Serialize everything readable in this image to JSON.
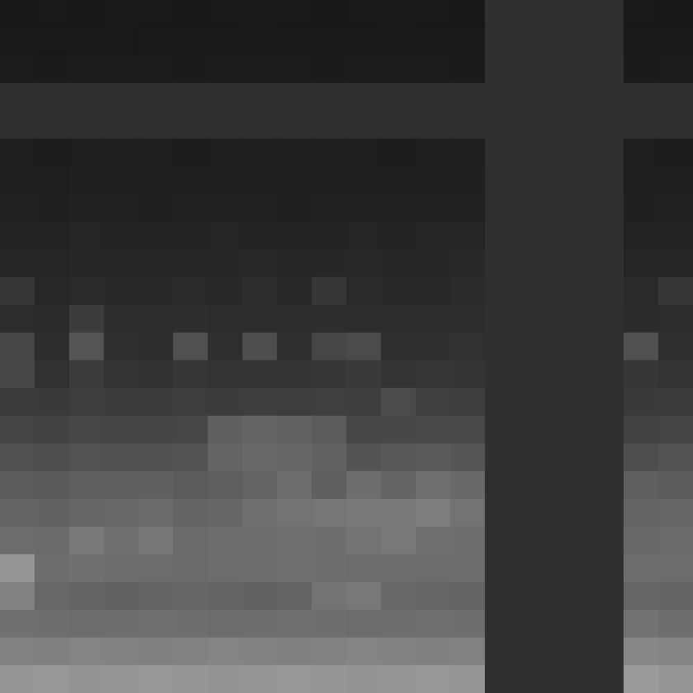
{
  "chart_data": {
    "type": "heatmap",
    "tick_labels": false,
    "grid": false,
    "color_range": [
      0,
      255
    ],
    "cells": [
      [
        24,
        25,
        24,
        26,
        25,
        24,
        25,
        26,
        25,
        24,
        25,
        26,
        25,
        24,
        48,
        48,
        48,
        48,
        25,
        24
      ],
      [
        26,
        25,
        26,
        25,
        27,
        26,
        25,
        26,
        27,
        26,
        25,
        26,
        27,
        26,
        48,
        48,
        48,
        48,
        26,
        25
      ],
      [
        28,
        27,
        28,
        29,
        28,
        27,
        28,
        29,
        28,
        27,
        28,
        29,
        28,
        27,
        48,
        48,
        48,
        48,
        27,
        28
      ],
      [
        48,
        48,
        48,
        48,
        48,
        48,
        48,
        48,
        48,
        48,
        48,
        48,
        48,
        48,
        48,
        48,
        48,
        48,
        48,
        48
      ],
      [
        48,
        48,
        48,
        48,
        48,
        48,
        48,
        48,
        48,
        48,
        48,
        48,
        48,
        48,
        48,
        48,
        48,
        48,
        48,
        48
      ],
      [
        30,
        29,
        30,
        31,
        30,
        29,
        30,
        31,
        30,
        31,
        30,
        29,
        30,
        31,
        48,
        48,
        48,
        48,
        30,
        29
      ],
      [
        31,
        30,
        32,
        31,
        30,
        31,
        32,
        31,
        30,
        31,
        32,
        31,
        30,
        32,
        48,
        48,
        48,
        48,
        31,
        30
      ],
      [
        33,
        32,
        34,
        33,
        32,
        33,
        34,
        33,
        32,
        33,
        34,
        33,
        34,
        33,
        48,
        48,
        48,
        48,
        32,
        33
      ],
      [
        36,
        35,
        37,
        36,
        35,
        36,
        37,
        36,
        35,
        36,
        37,
        36,
        37,
        38,
        48,
        48,
        48,
        48,
        35,
        36
      ],
      [
        38,
        37,
        39,
        38,
        37,
        38,
        39,
        40,
        38,
        39,
        40,
        39,
        38,
        40,
        48,
        48,
        48,
        48,
        37,
        38
      ],
      [
        55,
        40,
        42,
        41,
        40,
        42,
        41,
        45,
        40,
        55,
        42,
        41,
        40,
        43,
        48,
        48,
        48,
        48,
        42,
        55
      ],
      [
        44,
        43,
        60,
        45,
        44,
        46,
        44,
        45,
        44,
        46,
        45,
        44,
        45,
        46,
        48,
        48,
        48,
        48,
        43,
        45
      ],
      [
        70,
        45,
        85,
        48,
        46,
        80,
        47,
        78,
        48,
        70,
        75,
        47,
        48,
        49,
        48,
        48,
        48,
        48,
        80,
        47
      ],
      [
        72,
        50,
        60,
        52,
        50,
        55,
        51,
        53,
        52,
        54,
        58,
        52,
        55,
        53,
        48,
        48,
        48,
        48,
        55,
        51
      ],
      [
        60,
        58,
        62,
        60,
        59,
        61,
        60,
        62,
        61,
        63,
        62,
        75,
        64,
        62,
        48,
        48,
        48,
        48,
        58,
        60
      ],
      [
        68,
        66,
        70,
        68,
        69,
        70,
        95,
        100,
        98,
        92,
        70,
        72,
        74,
        73,
        48,
        48,
        48,
        48,
        66,
        68
      ],
      [
        80,
        78,
        82,
        80,
        81,
        83,
        100,
        105,
        102,
        98,
        84,
        88,
        90,
        86,
        48,
        48,
        48,
        48,
        78,
        82
      ],
      [
        92,
        90,
        94,
        95,
        96,
        92,
        94,
        100,
        108,
        95,
        110,
        100,
        112,
        105,
        48,
        48,
        48,
        48,
        95,
        92
      ],
      [
        100,
        98,
        102,
        104,
        106,
        100,
        102,
        112,
        115,
        118,
        120,
        122,
        125,
        115,
        48,
        48,
        48,
        48,
        100,
        102
      ],
      [
        108,
        106,
        120,
        112,
        118,
        106,
        108,
        110,
        112,
        110,
        116,
        120,
        112,
        110,
        48,
        48,
        48,
        48,
        104,
        106
      ],
      [
        150,
        110,
        112,
        110,
        108,
        106,
        108,
        110,
        112,
        110,
        108,
        110,
        108,
        110,
        48,
        48,
        48,
        48,
        110,
        108
      ],
      [
        130,
        104,
        100,
        98,
        100,
        102,
        100,
        98,
        100,
        115,
        120,
        104,
        102,
        100,
        48,
        48,
        48,
        48,
        102,
        100
      ],
      [
        112,
        110,
        108,
        110,
        112,
        110,
        108,
        110,
        112,
        110,
        108,
        110,
        112,
        110,
        48,
        48,
        48,
        48,
        114,
        110
      ],
      [
        130,
        128,
        132,
        130,
        128,
        130,
        132,
        130,
        128,
        130,
        132,
        130,
        128,
        130,
        48,
        48,
        48,
        48,
        135,
        132
      ],
      [
        150,
        152,
        148,
        150,
        152,
        150,
        148,
        150,
        152,
        150,
        148,
        150,
        152,
        150,
        48,
        48,
        48,
        48,
        155,
        150
      ]
    ]
  }
}
